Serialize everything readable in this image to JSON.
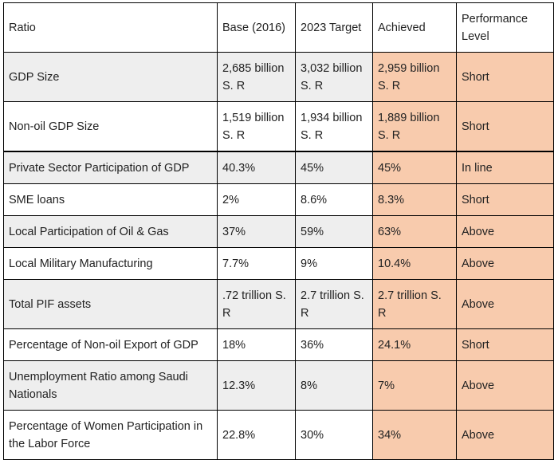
{
  "table": {
    "headers": [
      "Ratio",
      "Base (2016)",
      "2023 Target",
      "Achieved",
      "Performance Level"
    ],
    "rows": [
      {
        "ratio": "GDP Size",
        "base": "2,685 billion S. R",
        "target": "3,032 billion S. R",
        "achieved": "2,959 billion S. R",
        "level": "Short"
      },
      {
        "ratio": "Non-oil GDP Size",
        "base": "1,519 billion S. R",
        "target": "1,934 billion S. R",
        "achieved": "1,889 billion S. R",
        "level": "Short"
      },
      {
        "ratio": "Private Sector Participation of GDP",
        "base": "40.3%",
        "target": "45%",
        "achieved": "45%",
        "level": "In line"
      },
      {
        "ratio": "SME loans",
        "base": "2%",
        "target": "8.6%",
        "achieved": "8.3%",
        "level": "Short"
      },
      {
        "ratio": "Local Participation of Oil & Gas",
        "base": "37%",
        "target": "59%",
        "achieved": "63%",
        "level": "Above"
      },
      {
        "ratio": "Local Military Manufacturing",
        "base": "7.7%",
        "target": "9%",
        "achieved": "10.4%",
        "level": "Above"
      },
      {
        "ratio": "Total PIF assets",
        "base": ".72 trillion S. R",
        "target": "2.7 trillion S. R",
        "achieved": "2.7 trillion S. R",
        "level": "Above"
      },
      {
        "ratio": "Percentage of Non-oil Export of GDP",
        "base": "18%",
        "target": "36%",
        "achieved": "24.1%",
        "level": "Short"
      },
      {
        "ratio": "Unemployment Ratio among Saudi Nationals",
        "base": "12.3%",
        "target": "8%",
        "achieved": "7%",
        "level": "Above"
      },
      {
        "ratio": "Percentage of Women Participation in the Labor Force",
        "base": "22.8%",
        "target": "30%",
        "achieved": "34%",
        "level": "Above"
      }
    ]
  },
  "colors": {
    "highlight": "#f8cbad",
    "shade": "#eeeeee",
    "border": "#000000"
  }
}
